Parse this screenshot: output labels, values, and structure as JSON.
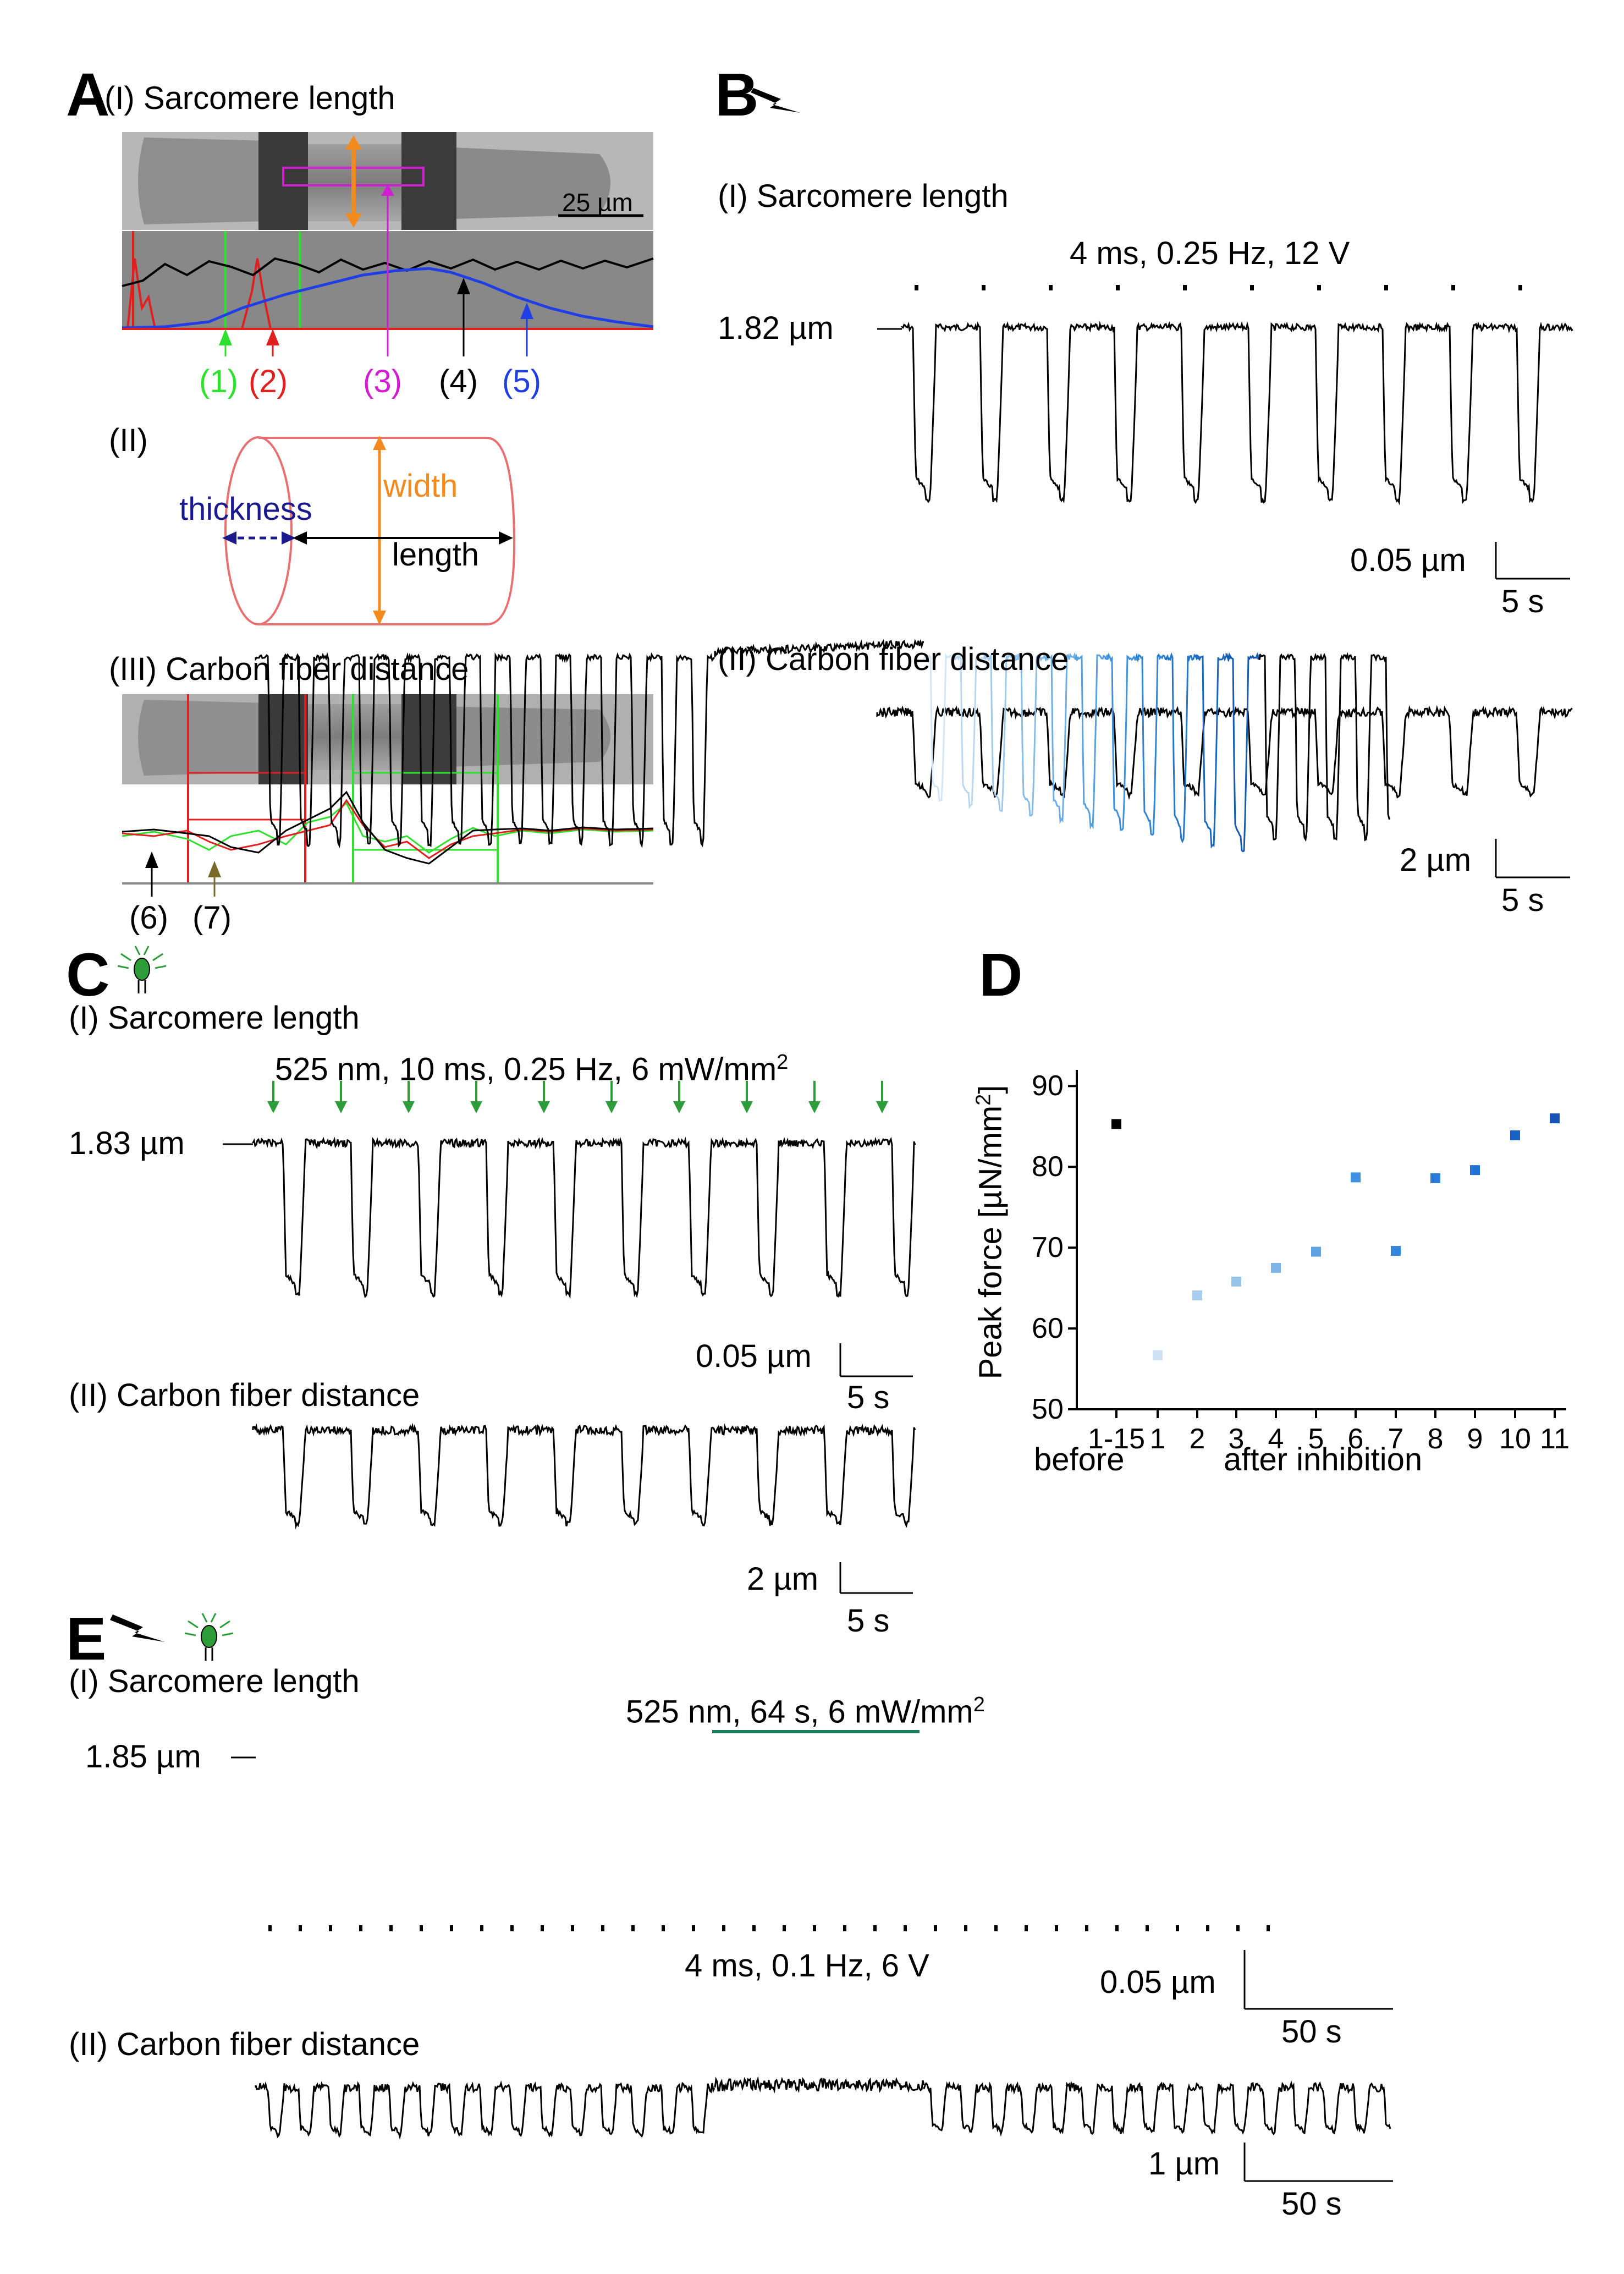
{
  "panelA": {
    "label": "A",
    "sub1": "(I) Sarcomere length",
    "scalebar": "25 µm",
    "markers": [
      "(1)",
      "(2)",
      "(3)",
      "(4)",
      "(5)"
    ],
    "sub2": "(II)",
    "cyl": {
      "thickness": "thickness",
      "width": "width",
      "length": "length"
    },
    "sub3": "(III) Carbon fiber distance",
    "markers2": [
      "(6)",
      "(7)"
    ]
  },
  "panelB": {
    "label": "B",
    "sub1": "(I) Sarcomere length",
    "stim": "4 ms, 0.25 Hz, 12 V",
    "baseline": "1.82 µm",
    "scale1_y": "0.05 µm",
    "scale1_x": "5 s",
    "sub2": "(II) Carbon fiber distance",
    "scale2_y": "2 µm",
    "scale2_x": "5 s"
  },
  "panelC": {
    "label": "C",
    "sub1": "(I) Sarcomere length",
    "stim": "525 nm, 10 ms, 0.25 Hz, 6 mW/mm",
    "stim_sup": "2",
    "baseline": "1.83 µm",
    "scale1_y": "0.05 µm",
    "scale1_x": "5 s",
    "sub2": "(II) Carbon fiber distance",
    "scale2_y": "2 µm",
    "scale2_x": "5 s"
  },
  "panelD": {
    "label": "D",
    "before_label": "before",
    "after_label": "after inhibition"
  },
  "panelE": {
    "label": "E",
    "sub1": "(I) Sarcomere length",
    "light": "525 nm, 64 s, 6 mW/mm",
    "light_sup": "2",
    "baseline": "1.85 µm",
    "stim": "4 ms, 0.1 Hz, 6 V",
    "scale1_y": "0.05 µm",
    "scale1_x": "50 s",
    "sub2": "(II) Carbon fiber distance",
    "scale2_y": "1 µm",
    "scale2_x": "50 s"
  },
  "colors": {
    "orange": "#f28a1e",
    "green_led": "#2d9d3a",
    "light_bar": "#1b7e5a",
    "navy": "#1a1a8c",
    "magenta": "#d21ed2",
    "blue_marker": "#1f3ee6",
    "green_marker": "#2fe02f",
    "red_marker": "#e01f1f"
  },
  "chart_data": {
    "type": "scatter",
    "title": "",
    "xlabel": "",
    "ylabel": "Peak force [µN/mm²]",
    "ylabel_main": "Peak force [µN/mm",
    "ylabel_sup": "2",
    "ylabel_tail": "]",
    "ylim": [
      50,
      92
    ],
    "yticks": [
      50,
      60,
      70,
      80,
      90
    ],
    "categories": [
      "1-15",
      "1",
      "2",
      "3",
      "4",
      "5",
      "6",
      "7",
      "8",
      "9",
      "10",
      "11"
    ],
    "values": [
      85.3,
      56.7,
      64.1,
      65.8,
      67.5,
      69.5,
      78.7,
      69.6,
      78.6,
      79.6,
      83.9,
      86.0
    ],
    "point_colors": [
      "#000000",
      "#cfe3f5",
      "#a9cdec",
      "#96c3ea",
      "#7fb4e6",
      "#5fa2e3",
      "#3f8fe0",
      "#3586db",
      "#2b7bd6",
      "#2271d0",
      "#1a62c2",
      "#1454b3"
    ]
  }
}
